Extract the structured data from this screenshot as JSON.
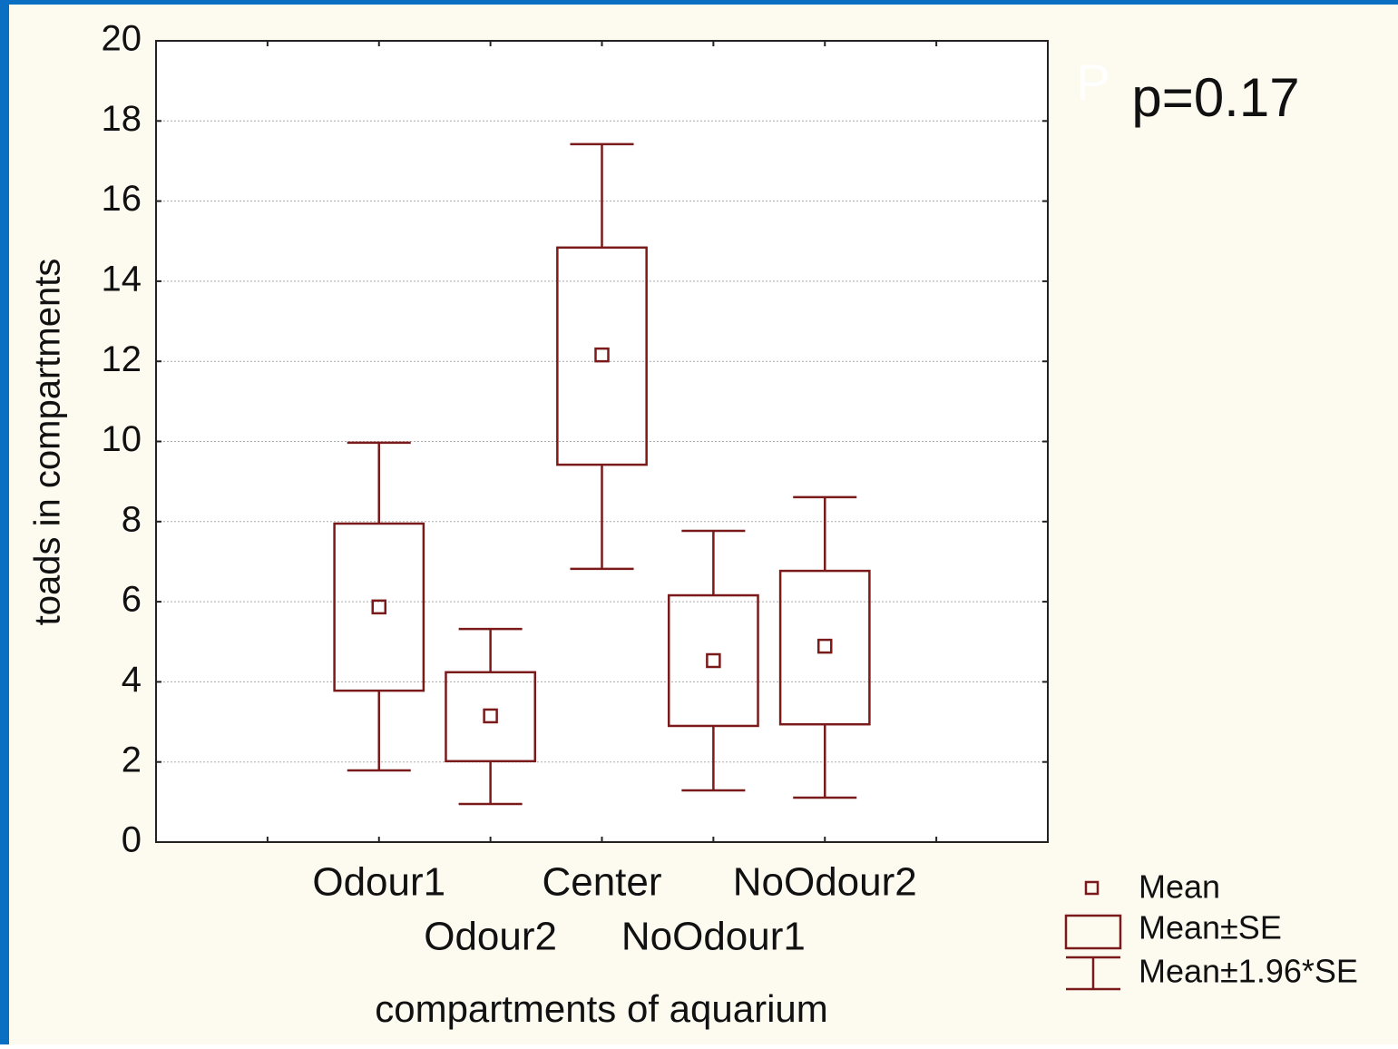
{
  "chart_data": {
    "type": "box",
    "annotation": "p=0.17",
    "annotation_faint": "P",
    "x_label": "compartments of aquarium",
    "y_label": "toads in compartments",
    "categories": [
      "Odour1",
      "Odour2",
      "Center",
      "NoOdour1",
      "NoOdour2"
    ],
    "mean": [
      5.87,
      3.15,
      12.16,
      4.53,
      4.89
    ],
    "se_low": [
      3.78,
      2.02,
      9.42,
      2.9,
      2.94
    ],
    "se_high": [
      7.95,
      4.24,
      14.84,
      6.16,
      6.77
    ],
    "ci_low": [
      1.79,
      0.95,
      6.82,
      1.29,
      1.11
    ],
    "ci_high": [
      9.97,
      5.32,
      17.42,
      7.77,
      8.61
    ],
    "color": "#7b1a1a",
    "legend": [
      "Mean",
      "Mean±SE",
      "Mean±1.96*SE"
    ],
    "ylim": [
      0,
      20
    ],
    "yticks": [
      0,
      2,
      4,
      6,
      8,
      10,
      12,
      14,
      16,
      18,
      20
    ],
    "grid": true
  }
}
